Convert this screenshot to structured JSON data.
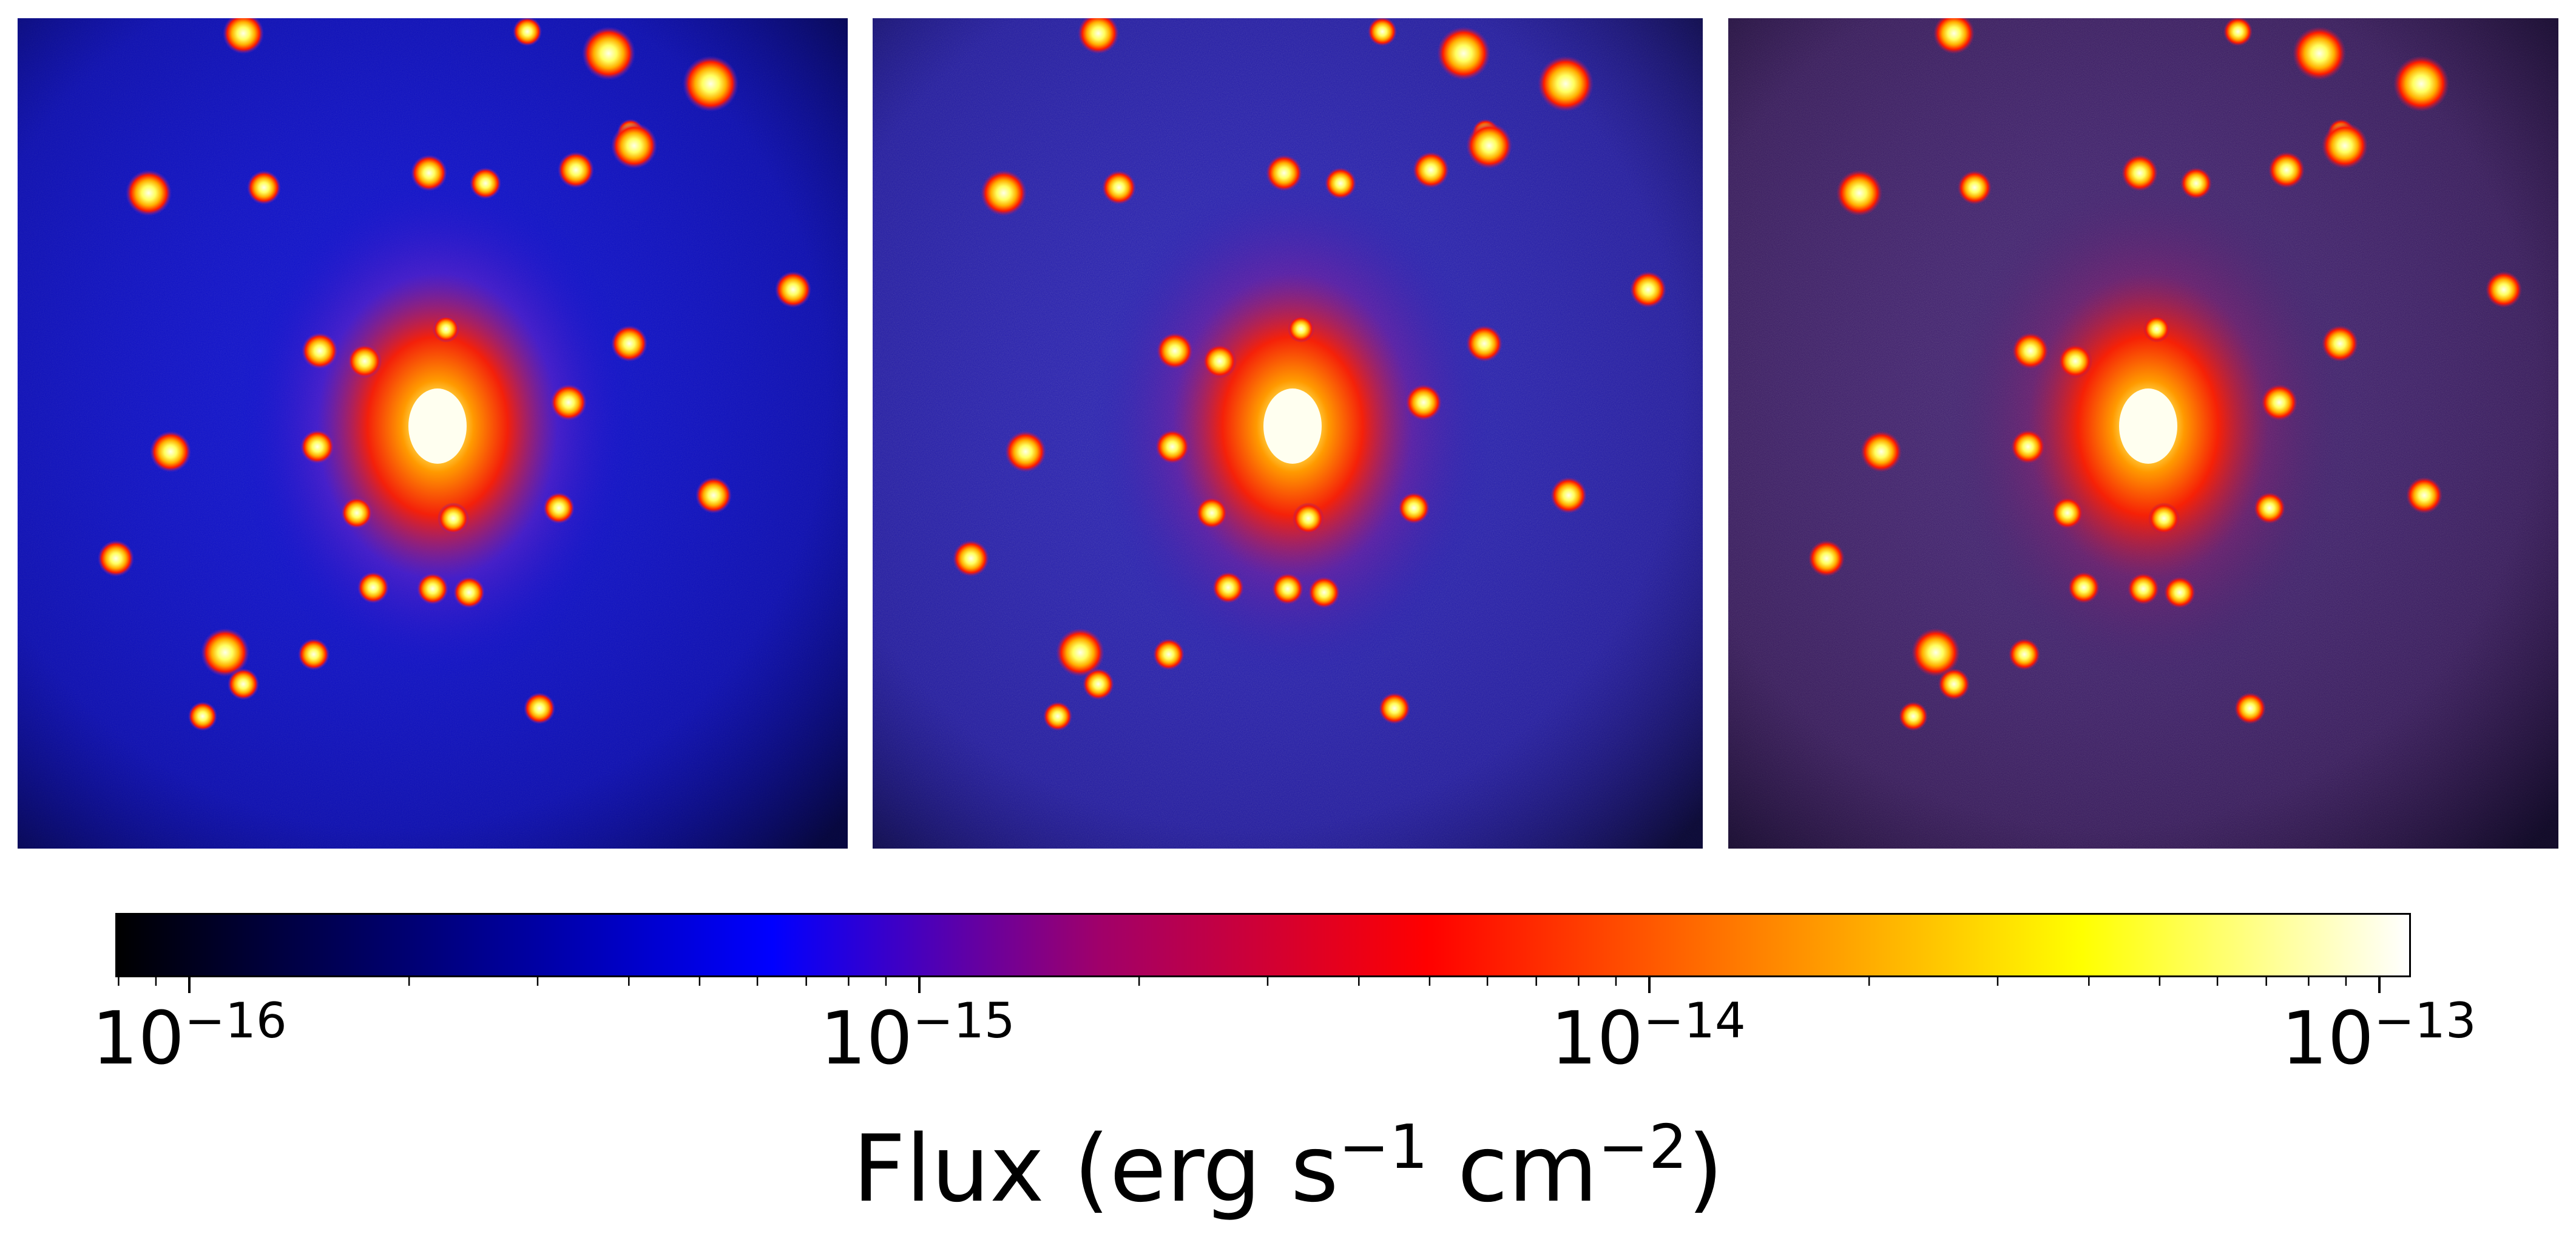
{
  "panels": [
    {
      "id": "panel-1",
      "background": "#0c0cc4"
    },
    {
      "id": "panel-2",
      "background": "#2a1aa8"
    },
    {
      "id": "panel-3",
      "background": "#3c1a66"
    }
  ],
  "colorbar": {
    "scale": "log",
    "colormap_stops": [
      "#000000",
      "#000080",
      "#0000ff",
      "#a0006a",
      "#ff0000",
      "#ff8000",
      "#ffff00",
      "#ffffff"
    ],
    "tick_labels": [
      {
        "base": "10",
        "exponent": "−16"
      },
      {
        "base": "10",
        "exponent": "−15"
      },
      {
        "base": "10",
        "exponent": "−14"
      },
      {
        "base": "10",
        "exponent": "−13"
      }
    ],
    "label": {
      "prefix": "Flux (erg s",
      "exp1": "−1",
      "middle": " cm",
      "exp2": "−2",
      "suffix": ")"
    }
  }
}
